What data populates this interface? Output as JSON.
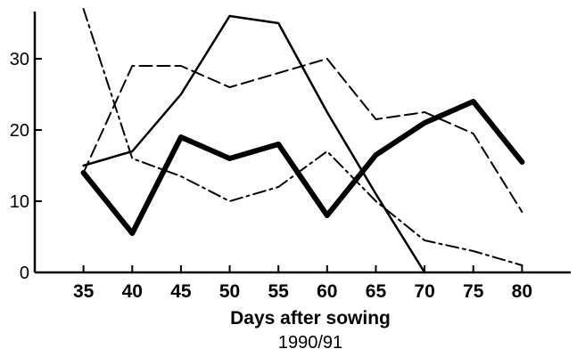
{
  "chart_data": {
    "type": "line",
    "xlabel": "Days after sowing",
    "subtitle": "1990/91",
    "ylabel": "",
    "x": [
      35,
      40,
      45,
      50,
      55,
      60,
      65,
      70,
      75,
      80
    ],
    "xlim": [
      30,
      85
    ],
    "ylim": [
      0,
      36
    ],
    "y_ticks": [
      0,
      10,
      20,
      30
    ],
    "x_ticks": [
      35,
      40,
      45,
      50,
      55,
      60,
      65,
      70,
      75,
      80
    ],
    "grid": false,
    "series": [
      {
        "style": "thick-solid",
        "values": [
          14,
          5.5,
          19,
          16,
          18,
          8,
          16.5,
          21,
          24,
          15.5
        ]
      },
      {
        "style": "thin-solid",
        "values": [
          15,
          17,
          25,
          36,
          35,
          22.5,
          11,
          0,
          null,
          null
        ]
      },
      {
        "style": "dashed",
        "values": [
          14,
          29,
          29,
          26,
          28,
          30,
          21.5,
          22.5,
          19.5,
          8.5
        ]
      },
      {
        "style": "dash-dot",
        "values": [
          37,
          16,
          13.5,
          10,
          12,
          17,
          10,
          4.5,
          3,
          1
        ]
      }
    ]
  }
}
